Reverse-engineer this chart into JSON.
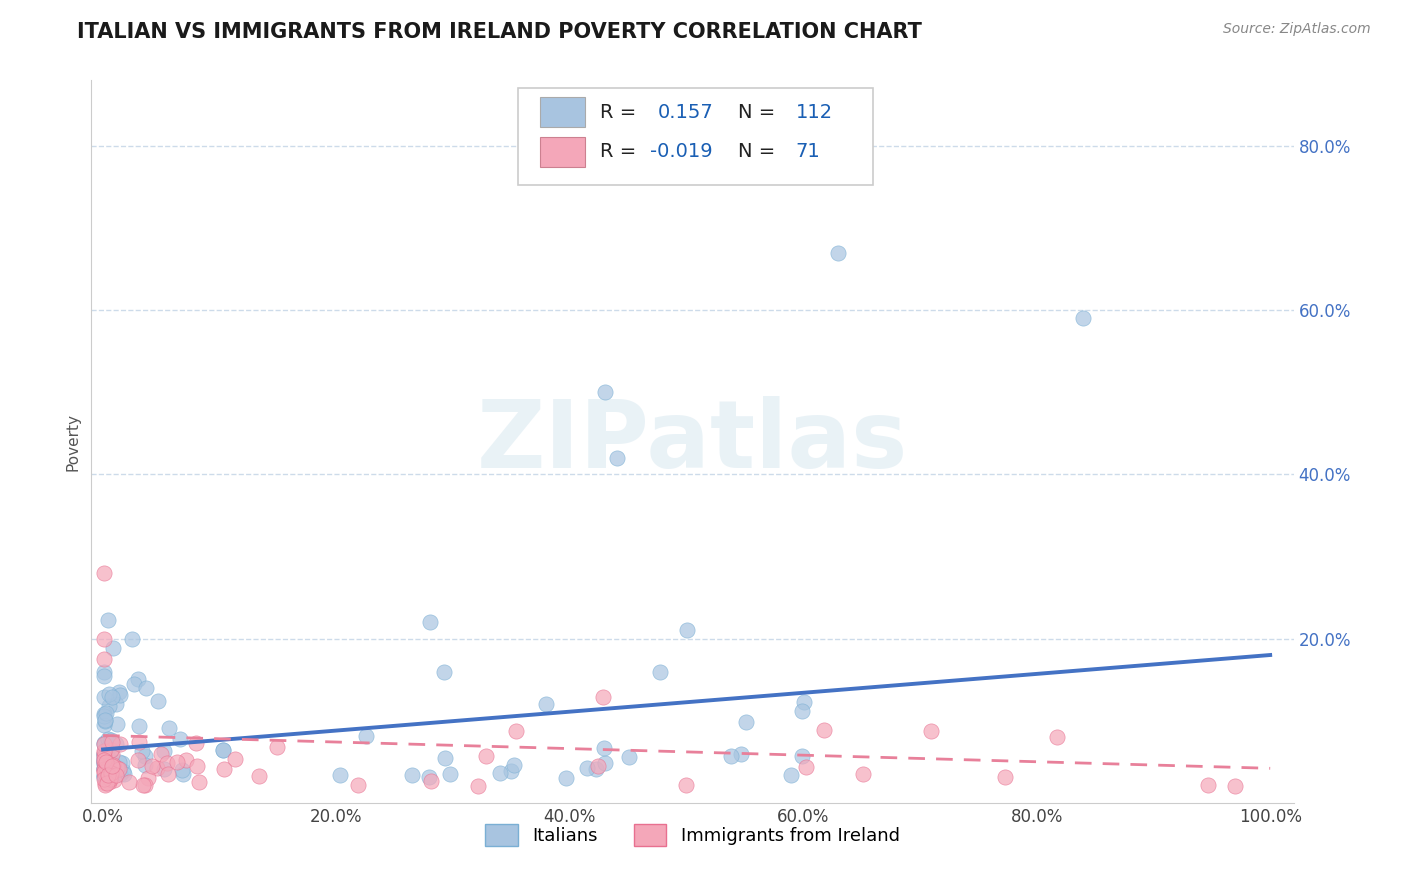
{
  "title": "ITALIAN VS IMMIGRANTS FROM IRELAND POVERTY CORRELATION CHART",
  "source": "Source: ZipAtlas.com",
  "ylabel": "Poverty",
  "series1_name": "Italians",
  "series1_color": "#a8c4e0",
  "series1_edge": "#7aafd4",
  "series2_name": "Immigrants from Ireland",
  "series2_color": "#f4a7b9",
  "series2_edge": "#e87090",
  "line1_color": "#4472c4",
  "line2_color": "#e8809a",
  "background_color": "#ffffff",
  "grid_color": "#c8d8e8",
  "watermark": "ZIPatlas",
  "title_fontsize": 15,
  "axis_label_fontsize": 11,
  "tick_fontsize": 12,
  "ytick_color": "#4472c4",
  "line1_slope": 0.115,
  "line1_intercept": 0.065,
  "line2_slope": -0.04,
  "line2_intercept": 0.082
}
